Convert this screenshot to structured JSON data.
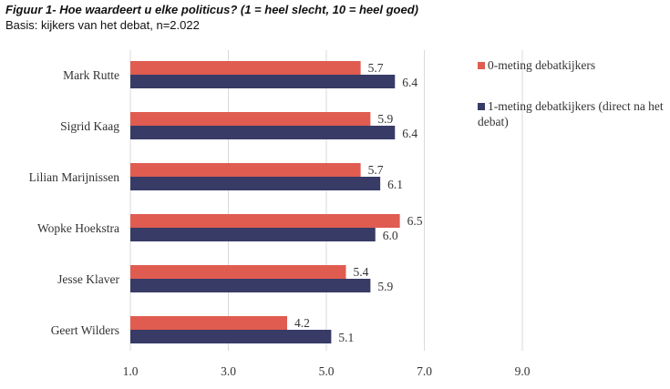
{
  "title": "Figuur 1- Hoe waardeert u elke politicus? (1 = heel slecht, 10 = heel goed)",
  "subtitle": "Basis: kijkers van het debat, n=2.022",
  "chart_data": {
    "type": "bar",
    "orientation": "horizontal",
    "categories": [
      "Mark Rutte",
      "Sigrid Kaag",
      "Lilian Marijnissen",
      "Wopke Hoekstra",
      "Jesse Klaver",
      "Geert Wilders"
    ],
    "series": [
      {
        "name": "0-meting debatkijkers",
        "color": "#e05c51",
        "values": [
          5.7,
          5.9,
          5.7,
          6.5,
          5.4,
          4.2
        ],
        "labels": [
          "5.7",
          "5.9",
          "5.7",
          "6.5",
          "5.4",
          "4.2"
        ]
      },
      {
        "name": "1-meting debatkijkers (direct na het debat)",
        "color": "#383b66",
        "values": [
          6.4,
          6.4,
          6.1,
          6.0,
          5.9,
          5.1
        ],
        "labels": [
          "6.4",
          "6.4",
          "6.1",
          "6.0",
          "5.9",
          "5.1"
        ]
      }
    ],
    "xlim": [
      1,
      10
    ],
    "xticks": [
      "1.0",
      "3.0",
      "5.0",
      "7.0",
      "9.0"
    ],
    "xtick_values": [
      1,
      3,
      5,
      7,
      9
    ],
    "grid": true,
    "legend": "right"
  }
}
